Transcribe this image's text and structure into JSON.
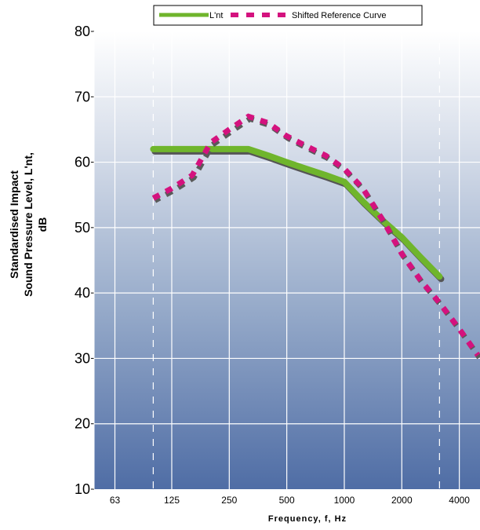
{
  "chart_data": {
    "type": "line",
    "x_categories": [
      "63",
      "125",
      "250",
      "500",
      "1000",
      "2000",
      "4000"
    ],
    "xlabel": "Frequency, f, Hz",
    "ylabel_lines": [
      "Standardised Impact",
      "Sound Pressure Level,  L'nt,",
      "dB"
    ],
    "ylim": [
      10,
      80
    ],
    "yticks": [
      "10",
      "20",
      "30",
      "40",
      "50",
      "60",
      "70",
      "80"
    ],
    "grid": true,
    "legend_position": "top",
    "series": [
      {
        "name": "L'nt",
        "style": "solid",
        "color": "#6fb52c",
        "x": [
          100,
          125,
          160,
          200,
          250,
          315,
          400,
          500,
          630,
          800,
          1000,
          1250,
          1600,
          2000,
          2500,
          3150
        ],
        "y": [
          62,
          62,
          62,
          62,
          62,
          62,
          61,
          60,
          59,
          58,
          57,
          54,
          51,
          48.5,
          45.5,
          42.5
        ]
      },
      {
        "name": "Shifted Reference Curve",
        "style": "dashed",
        "color": "#d4127e",
        "x": [
          100,
          125,
          160,
          200,
          250,
          315,
          400,
          500,
          630,
          800,
          1000,
          1250,
          1600,
          2000,
          2500,
          3150,
          4000,
          5000
        ],
        "y": [
          54.5,
          56,
          58,
          63,
          65,
          67,
          66,
          64,
          62.5,
          61,
          59,
          56,
          51,
          46,
          42,
          38.5,
          34.5,
          30.5
        ]
      }
    ]
  }
}
